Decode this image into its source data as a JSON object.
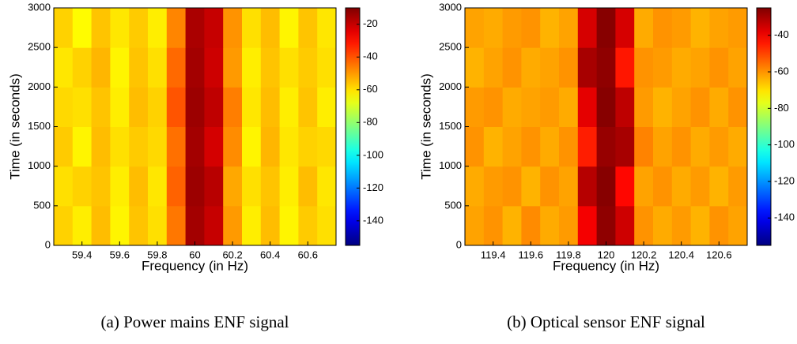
{
  "chart_data": [
    {
      "type": "heatmap",
      "caption": "(a) Power mains ENF signal",
      "xlabel": "Frequency (in Hz)",
      "ylabel": "Time (in seconds)",
      "x": [
        59.3,
        59.4,
        59.5,
        59.6,
        59.7,
        59.8,
        59.9,
        60.0,
        60.1,
        60.2,
        60.3,
        60.4,
        60.5,
        60.6,
        60.7
      ],
      "y": [
        250,
        750,
        1250,
        1750,
        2250,
        2750
      ],
      "z": [
        [
          -58,
          -62,
          -55,
          -63,
          -56,
          -60,
          -45,
          -15,
          -20,
          -50,
          -62,
          -55,
          -63,
          -57,
          -60
        ],
        [
          -60,
          -58,
          -56,
          -62,
          -55,
          -61,
          -42,
          -14,
          -18,
          -52,
          -60,
          -56,
          -62,
          -55,
          -61
        ],
        [
          -57,
          -63,
          -55,
          -60,
          -57,
          -59,
          -44,
          -15,
          -22,
          -48,
          -63,
          -54,
          -61,
          -58,
          -59
        ],
        [
          -59,
          -60,
          -56,
          -62,
          -55,
          -58,
          -40,
          -14,
          -19,
          -46,
          -61,
          -55,
          -62,
          -56,
          -62
        ],
        [
          -61,
          -58,
          -54,
          -63,
          -56,
          -60,
          -43,
          -15,
          -21,
          -50,
          -62,
          -56,
          -60,
          -57,
          -60
        ],
        [
          -58,
          -64,
          -56,
          -61,
          -57,
          -62,
          -47,
          -16,
          -20,
          -49,
          -60,
          -55,
          -63,
          -56,
          -61
        ]
      ],
      "xlim": [
        59.25,
        60.75
      ],
      "ylim": [
        0,
        3000
      ],
      "xticks": [
        59.4,
        59.6,
        59.8,
        60,
        60.2,
        60.4,
        60.6
      ],
      "yticks": [
        0,
        500,
        1000,
        1500,
        2000,
        2500,
        3000
      ],
      "clim": [
        -155,
        -10
      ],
      "cticks": [
        -20,
        -40,
        -60,
        -80,
        -100,
        -120,
        -140
      ]
    },
    {
      "type": "heatmap",
      "caption": "(b) Optical sensor ENF signal",
      "xlabel": "Frequency (in Hz)",
      "ylabel": "Time (in seconds)",
      "x": [
        119.3,
        119.4,
        119.5,
        119.6,
        119.7,
        119.8,
        119.9,
        120.0,
        120.1,
        120.2,
        120.3,
        120.4,
        120.5,
        120.6,
        120.7
      ],
      "y": [
        250,
        750,
        1250,
        1750,
        2250,
        2750
      ],
      "z": [
        [
          -62,
          -60,
          -64,
          -59,
          -63,
          -61,
          -40,
          -27,
          -35,
          -60,
          -63,
          -61,
          -64,
          -60,
          -62
        ],
        [
          -63,
          -61,
          -60,
          -64,
          -60,
          -62,
          -32,
          -26,
          -42,
          -62,
          -60,
          -63,
          -61,
          -64,
          -61
        ],
        [
          -60,
          -64,
          -62,
          -60,
          -63,
          -60,
          -45,
          -28,
          -30,
          -58,
          -62,
          -60,
          -63,
          -61,
          -63
        ],
        [
          -61,
          -60,
          -63,
          -62,
          -61,
          -63,
          -38,
          -26,
          -33,
          -61,
          -64,
          -62,
          -60,
          -63,
          -60
        ],
        [
          -64,
          -62,
          -60,
          -63,
          -62,
          -60,
          -30,
          -27,
          -44,
          -60,
          -61,
          -63,
          -62,
          -60,
          -62
        ],
        [
          -62,
          -63,
          -61,
          -60,
          -64,
          -62,
          -36,
          -26,
          -36,
          -63,
          -60,
          -61,
          -64,
          -62,
          -61
        ]
      ],
      "xlim": [
        119.25,
        120.75
      ],
      "ylim": [
        0,
        3000
      ],
      "xticks": [
        119.4,
        119.6,
        119.8,
        120,
        120.2,
        120.4,
        120.6
      ],
      "yticks": [
        0,
        500,
        1000,
        1500,
        2000,
        2500,
        3000
      ],
      "clim": [
        -155,
        -25
      ],
      "cticks": [
        -40,
        -60,
        -80,
        -100,
        -120,
        -140
      ]
    }
  ]
}
